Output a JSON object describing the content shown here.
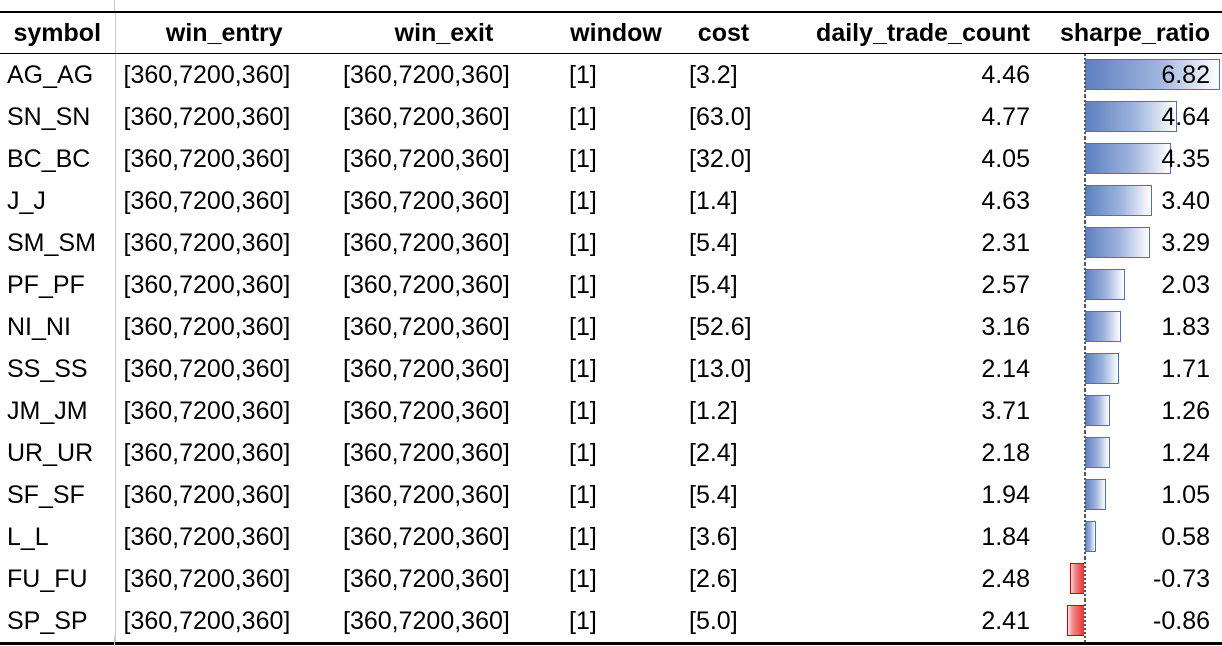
{
  "table": {
    "headers": {
      "symbol": "symbol",
      "win_entry": "win_entry",
      "win_exit": "win_exit",
      "window": "window",
      "cost": "cost",
      "daily_trade_count": "daily_trade_count",
      "sharpe_ratio": "sharpe_ratio"
    },
    "sharpe_scale_max": 6.82,
    "bar_colors": {
      "positive": "#5b7fc0",
      "positive_border": "#4a71bd",
      "negative": "#e63434",
      "negative_border": "#d00000"
    },
    "rows": [
      {
        "symbol": "AG_AG",
        "win_entry": "[360,7200,360]",
        "win_exit": "[360,7200,360]",
        "window": "[1]",
        "cost": "[3.2]",
        "daily_trade_count": "4.46",
        "sharpe_ratio": "6.82",
        "sharpe_value": 6.82
      },
      {
        "symbol": "SN_SN",
        "win_entry": "[360,7200,360]",
        "win_exit": "[360,7200,360]",
        "window": "[1]",
        "cost": "[63.0]",
        "daily_trade_count": "4.77",
        "sharpe_ratio": "4.64",
        "sharpe_value": 4.64
      },
      {
        "symbol": "BC_BC",
        "win_entry": "[360,7200,360]",
        "win_exit": "[360,7200,360]",
        "window": "[1]",
        "cost": "[32.0]",
        "daily_trade_count": "4.05",
        "sharpe_ratio": "4.35",
        "sharpe_value": 4.35
      },
      {
        "symbol": "J_J",
        "win_entry": "[360,7200,360]",
        "win_exit": "[360,7200,360]",
        "window": "[1]",
        "cost": "[1.4]",
        "daily_trade_count": "4.63",
        "sharpe_ratio": "3.40",
        "sharpe_value": 3.4
      },
      {
        "symbol": "SM_SM",
        "win_entry": "[360,7200,360]",
        "win_exit": "[360,7200,360]",
        "window": "[1]",
        "cost": "[5.4]",
        "daily_trade_count": "2.31",
        "sharpe_ratio": "3.29",
        "sharpe_value": 3.29
      },
      {
        "symbol": "PF_PF",
        "win_entry": "[360,7200,360]",
        "win_exit": "[360,7200,360]",
        "window": "[1]",
        "cost": "[5.4]",
        "daily_trade_count": "2.57",
        "sharpe_ratio": "2.03",
        "sharpe_value": 2.03
      },
      {
        "symbol": "NI_NI",
        "win_entry": "[360,7200,360]",
        "win_exit": "[360,7200,360]",
        "window": "[1]",
        "cost": "[52.6]",
        "daily_trade_count": "3.16",
        "sharpe_ratio": "1.83",
        "sharpe_value": 1.83
      },
      {
        "symbol": "SS_SS",
        "win_entry": "[360,7200,360]",
        "win_exit": "[360,7200,360]",
        "window": "[1]",
        "cost": "[13.0]",
        "daily_trade_count": "2.14",
        "sharpe_ratio": "1.71",
        "sharpe_value": 1.71
      },
      {
        "symbol": "JM_JM",
        "win_entry": "[360,7200,360]",
        "win_exit": "[360,7200,360]",
        "window": "[1]",
        "cost": "[1.2]",
        "daily_trade_count": "3.71",
        "sharpe_ratio": "1.26",
        "sharpe_value": 1.26
      },
      {
        "symbol": "UR_UR",
        "win_entry": "[360,7200,360]",
        "win_exit": "[360,7200,360]",
        "window": "[1]",
        "cost": "[2.4]",
        "daily_trade_count": "2.18",
        "sharpe_ratio": "1.24",
        "sharpe_value": 1.24
      },
      {
        "symbol": "SF_SF",
        "win_entry": "[360,7200,360]",
        "win_exit": "[360,7200,360]",
        "window": "[1]",
        "cost": "[5.4]",
        "daily_trade_count": "1.94",
        "sharpe_ratio": "1.05",
        "sharpe_value": 1.05
      },
      {
        "symbol": "L_L",
        "win_entry": "[360,7200,360]",
        "win_exit": "[360,7200,360]",
        "window": "[1]",
        "cost": "[3.6]",
        "daily_trade_count": "1.84",
        "sharpe_ratio": "0.58",
        "sharpe_value": 0.58
      },
      {
        "symbol": "FU_FU",
        "win_entry": "[360,7200,360]",
        "win_exit": "[360,7200,360]",
        "window": "[1]",
        "cost": "[2.6]",
        "daily_trade_count": "2.48",
        "sharpe_ratio": "-0.73",
        "sharpe_value": -0.73
      },
      {
        "symbol": "SP_SP",
        "win_entry": "[360,7200,360]",
        "win_exit": "[360,7200,360]",
        "window": "[1]",
        "cost": "[5.0]",
        "daily_trade_count": "2.41",
        "sharpe_ratio": "-0.86",
        "sharpe_value": -0.86
      }
    ]
  }
}
